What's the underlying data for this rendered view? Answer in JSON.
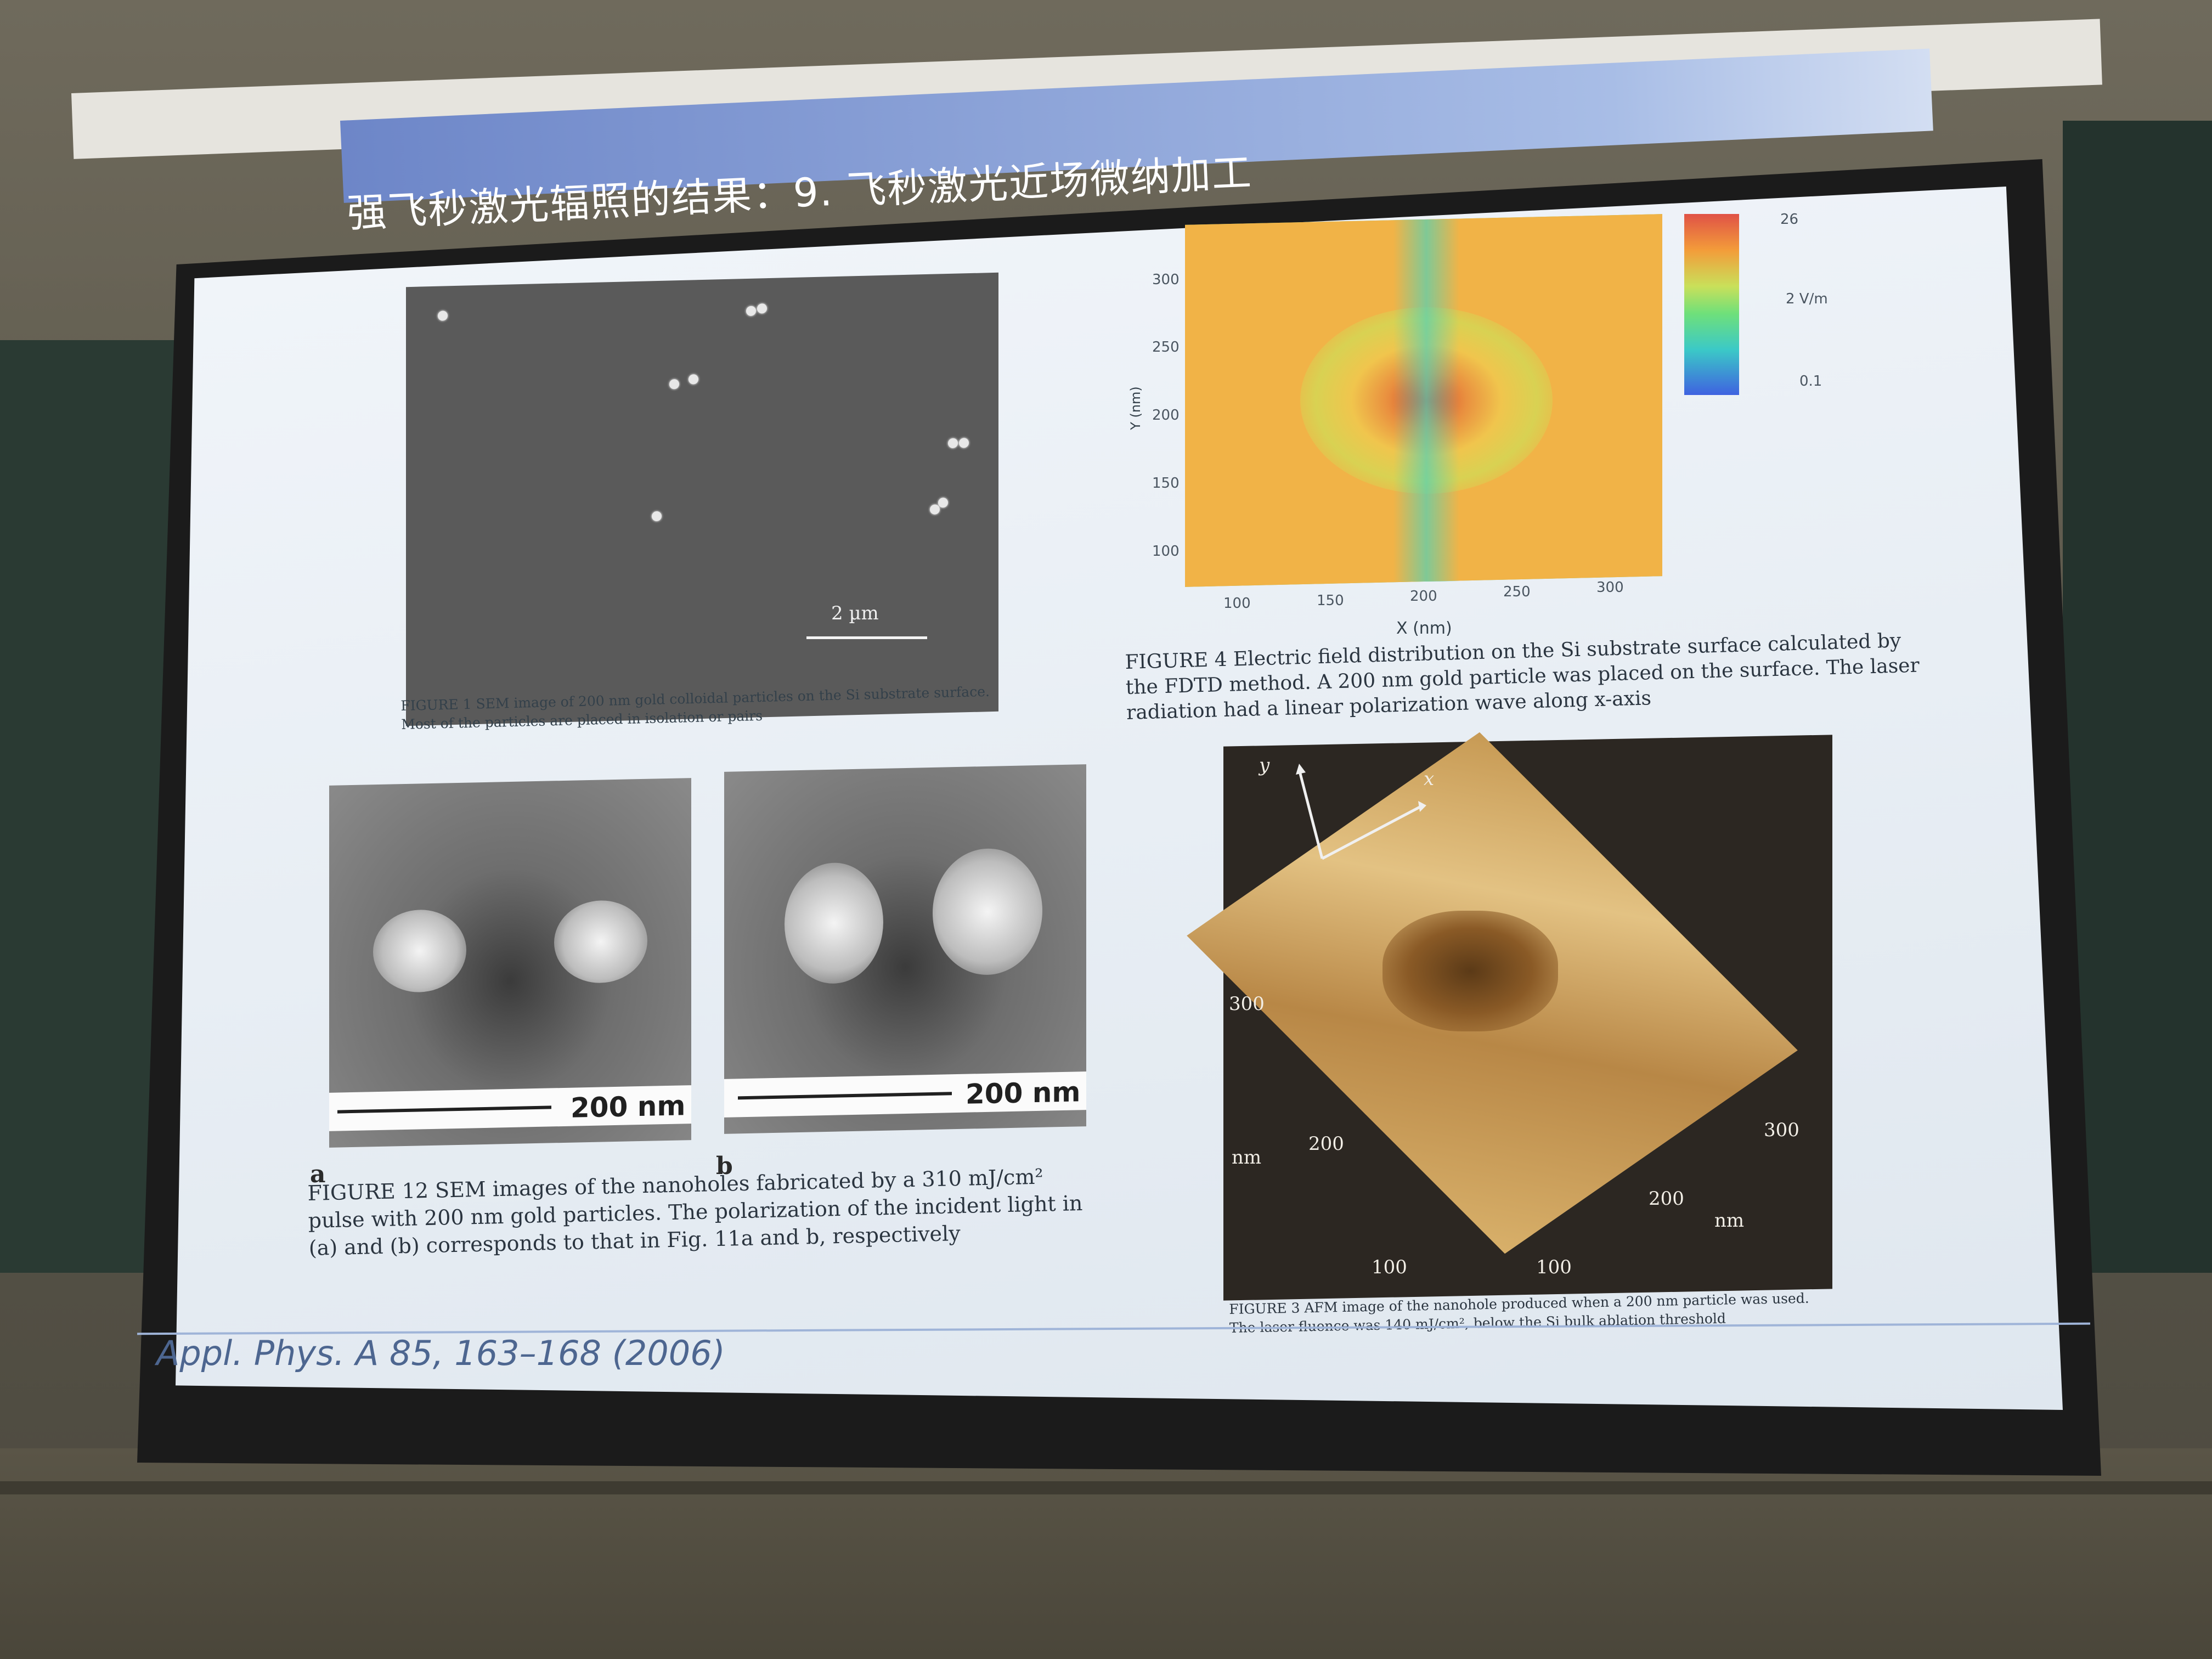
{
  "slide": {
    "title": "强飞秒激光辐照的结果：9. 飞秒激光近场微纳加工",
    "citation": "Appl. Phys. A 85, 163–168 (2006)"
  },
  "figure1": {
    "scale_label": "2 µm",
    "caption": "FIGURE 1   SEM image of 200 nm gold colloidal particles on the Si substrate surface. Most of the particles are placed in isolation or pairs"
  },
  "figure4": {
    "x_ticks": [
      "100",
      "150",
      "200",
      "250",
      "300"
    ],
    "y_ticks": [
      "300",
      "250",
      "200",
      "150",
      "100"
    ],
    "x_title": "X (nm)",
    "y_title": "Y (nm)",
    "colorbar_max": "26",
    "colorbar_mid": "2  V/m",
    "colorbar_min": "0.1",
    "caption": "FIGURE 4   Electric field distribution on the Si substrate surface calculated by the FDTD method. A 200 nm gold particle was placed on the surface. The laser radiation had a linear polarization wave along x-axis"
  },
  "figure12": {
    "scale_a": "200 nm",
    "scale_b": "200 nm",
    "label_a": "a",
    "label_b": "b",
    "caption": "FIGURE 12  SEM images of the nanoholes fabricated by a 310 mJ/cm² pulse with 200 nm gold particles. The polarization of the incident light in (a) and (b) corresponds to that in Fig. 11a and b, respectively"
  },
  "figure3": {
    "axis_y": "y",
    "axis_x": "x",
    "lbl_300_left": "300",
    "lbl_nm_left": "nm",
    "lbl_200_left": "200",
    "lbl_100_left": "100",
    "lbl_100_bottom": "100",
    "lbl_200_right": "200",
    "lbl_nm_right": "nm",
    "lbl_300_right": "300",
    "caption": "FIGURE 3   AFM image of the nanohole produced when a 200 nm particle was used. The laser fluence was 140 mJ/cm², below the Si bulk ablation threshold"
  }
}
